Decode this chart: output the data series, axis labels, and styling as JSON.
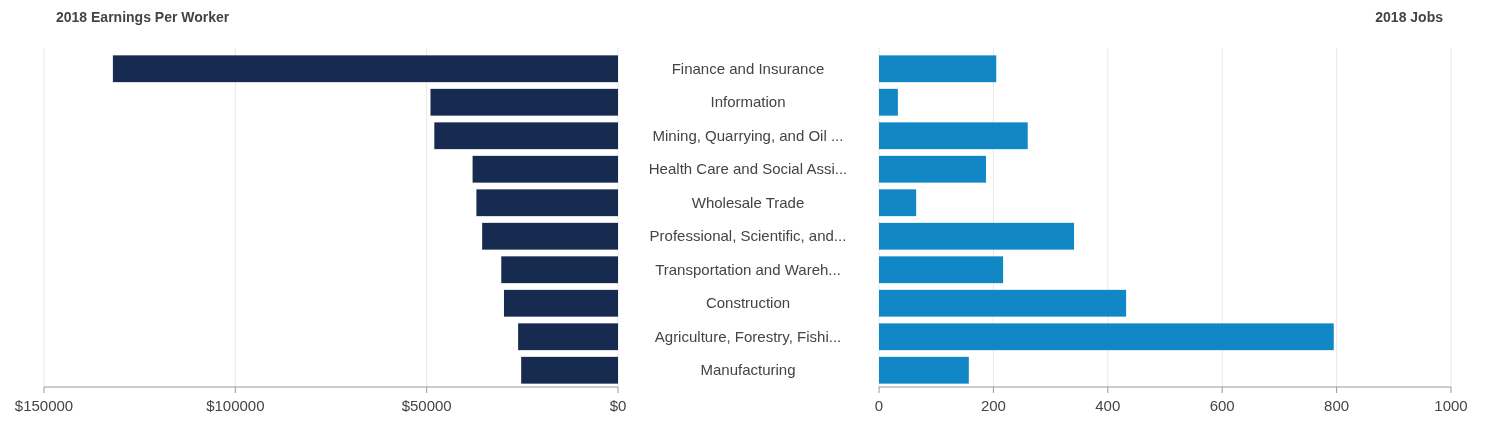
{
  "chart_data": [
    {
      "type": "bar",
      "orientation": "horizontal",
      "title": "2018 Earnings Per Worker",
      "categories": [
        "Finance and Insurance",
        "Information",
        "Mining, Quarrying, and Oil ...",
        "Health Care and Social Assi...",
        "Wholesale Trade",
        "Professional, Scientific, and...",
        "Transportation and Wareh...",
        "Construction",
        "Agriculture, Forestry, Fishi...",
        "Manufacturing"
      ],
      "values": [
        132000,
        49000,
        48000,
        38000,
        37000,
        35500,
        30500,
        29800,
        26100,
        25300
      ],
      "color": "#172a4f",
      "xlim": [
        150000,
        0
      ],
      "xticks": [
        {
          "value": 150000,
          "label": "$150000"
        },
        {
          "value": 100000,
          "label": "$100000"
        },
        {
          "value": 50000,
          "label": "$50000"
        },
        {
          "value": 0,
          "label": "$0"
        }
      ],
      "grid": "x"
    },
    {
      "type": "bar",
      "orientation": "horizontal",
      "title": "2018 Jobs",
      "categories": [
        null,
        null,
        null,
        null,
        null,
        null,
        null,
        null,
        null,
        null
      ],
      "values": [
        205,
        33,
        260,
        187,
        65,
        341,
        217,
        432,
        795,
        157
      ],
      "color": "#1287c6",
      "xlim": [
        0,
        1000
      ],
      "xticks": [
        0,
        200,
        400,
        600,
        800,
        1000
      ],
      "grid": "x"
    }
  ]
}
